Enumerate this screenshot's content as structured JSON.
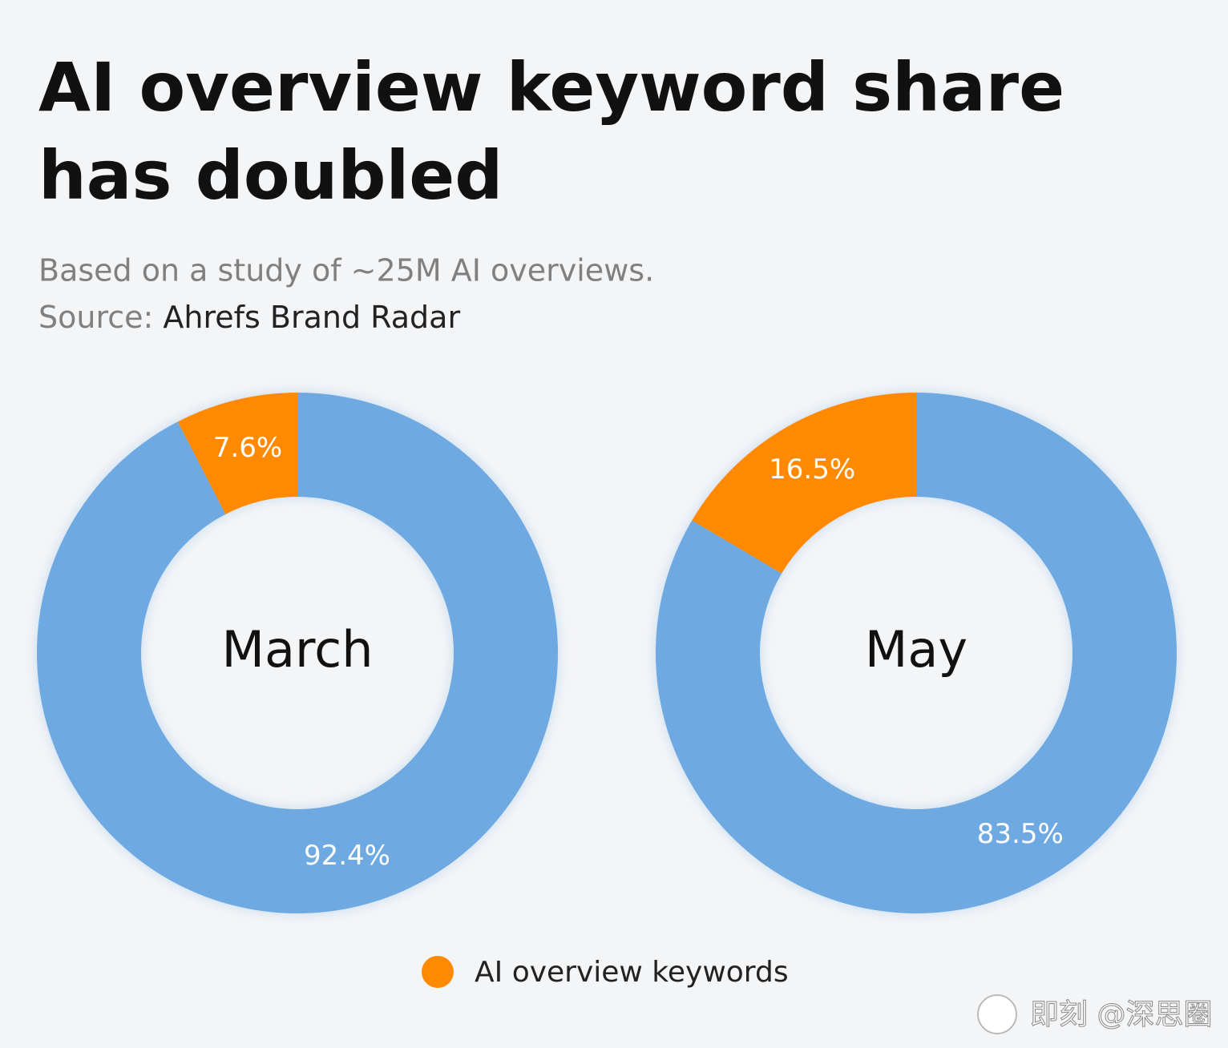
{
  "title": "AI overview keyword share has doubled",
  "subtitle": "Based on a study of ~25M AI overviews.",
  "source_label": "Source:",
  "source": "Ahrefs Brand Radar",
  "watermark": "即刻 @深思圈",
  "chart_data": [
    {
      "type": "donut",
      "title": "March",
      "categories": [
        "AI overview keywords",
        null
      ],
      "values": [
        7.6,
        92.4
      ],
      "value_labels": [
        "7.6%",
        "92.4%"
      ],
      "colors": [
        "#ff8a00",
        "#6eaae1"
      ]
    },
    {
      "type": "donut",
      "title": "May",
      "categories": [
        "AI overview keywords",
        null
      ],
      "values": [
        16.5,
        83.5
      ],
      "value_labels": [
        "16.5%",
        "83.5%"
      ],
      "colors": [
        "#ff8a00",
        "#6eaae1"
      ]
    }
  ]
}
